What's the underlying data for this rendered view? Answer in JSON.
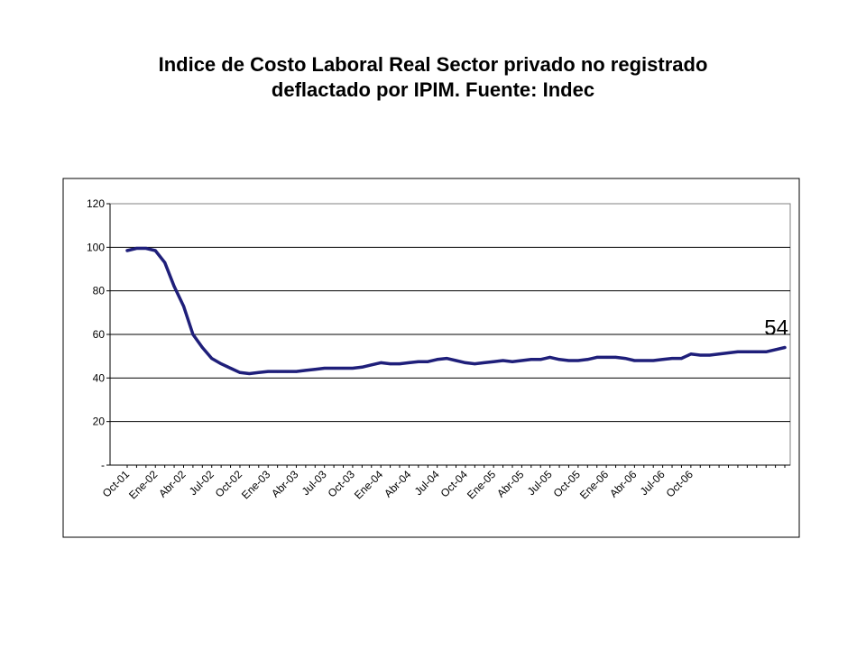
{
  "title_line1": "Indice de Costo Laboral Real Sector privado no registrado",
  "title_line2": "deflactado por IPIM. Fuente: Indec",
  "chart_data": {
    "type": "line",
    "title": "Indice de Costo Laboral Real Sector privado no registrado deflactado por IPIM. Fuente: Indec",
    "xlabel": "",
    "ylabel": "",
    "ylim": [
      0,
      120
    ],
    "yticks": [
      0,
      20,
      40,
      60,
      80,
      100,
      120
    ],
    "ytick_labels": [
      "-",
      "20",
      "40",
      "60",
      "80",
      "100",
      "120"
    ],
    "x_tick_labels": [
      "Oct-01",
      "Ene-02",
      "Abr-02",
      "Jul-02",
      "Oct-02",
      "Ene-03",
      "Abr-03",
      "Jul-03",
      "Oct-03",
      "Ene-04",
      "Abr-04",
      "Jul-04",
      "Oct-04",
      "Ene-05",
      "Abr-05",
      "Jul-05",
      "Oct-05",
      "Ene-06",
      "Abr-06",
      "Jul-06",
      "Oct-06"
    ],
    "grid": true,
    "line_color": "#1F1F7A",
    "annotation": {
      "text": "54"
    },
    "series": [
      {
        "values": [
          98.5,
          99.5,
          99.5,
          98.5,
          93,
          82,
          73,
          60,
          54,
          49,
          46.5,
          44.5,
          42.5,
          42,
          42.5,
          43,
          43,
          43,
          43,
          43.5,
          44,
          44.5,
          44.5,
          44.5,
          44.5,
          45,
          46,
          47,
          46.5,
          46.5,
          47,
          47.5,
          47.5,
          48.5,
          49,
          48,
          47,
          46.5,
          47,
          47.5,
          48,
          47.5,
          48,
          48.5,
          48.5,
          49.5,
          48.5,
          48,
          48,
          48.5,
          49.5,
          49.5,
          49.5,
          49,
          48,
          48,
          48,
          48.5,
          49,
          49,
          51,
          50.5,
          50.5,
          51,
          51.5,
          52,
          52,
          52,
          52,
          53,
          54
        ]
      }
    ]
  }
}
